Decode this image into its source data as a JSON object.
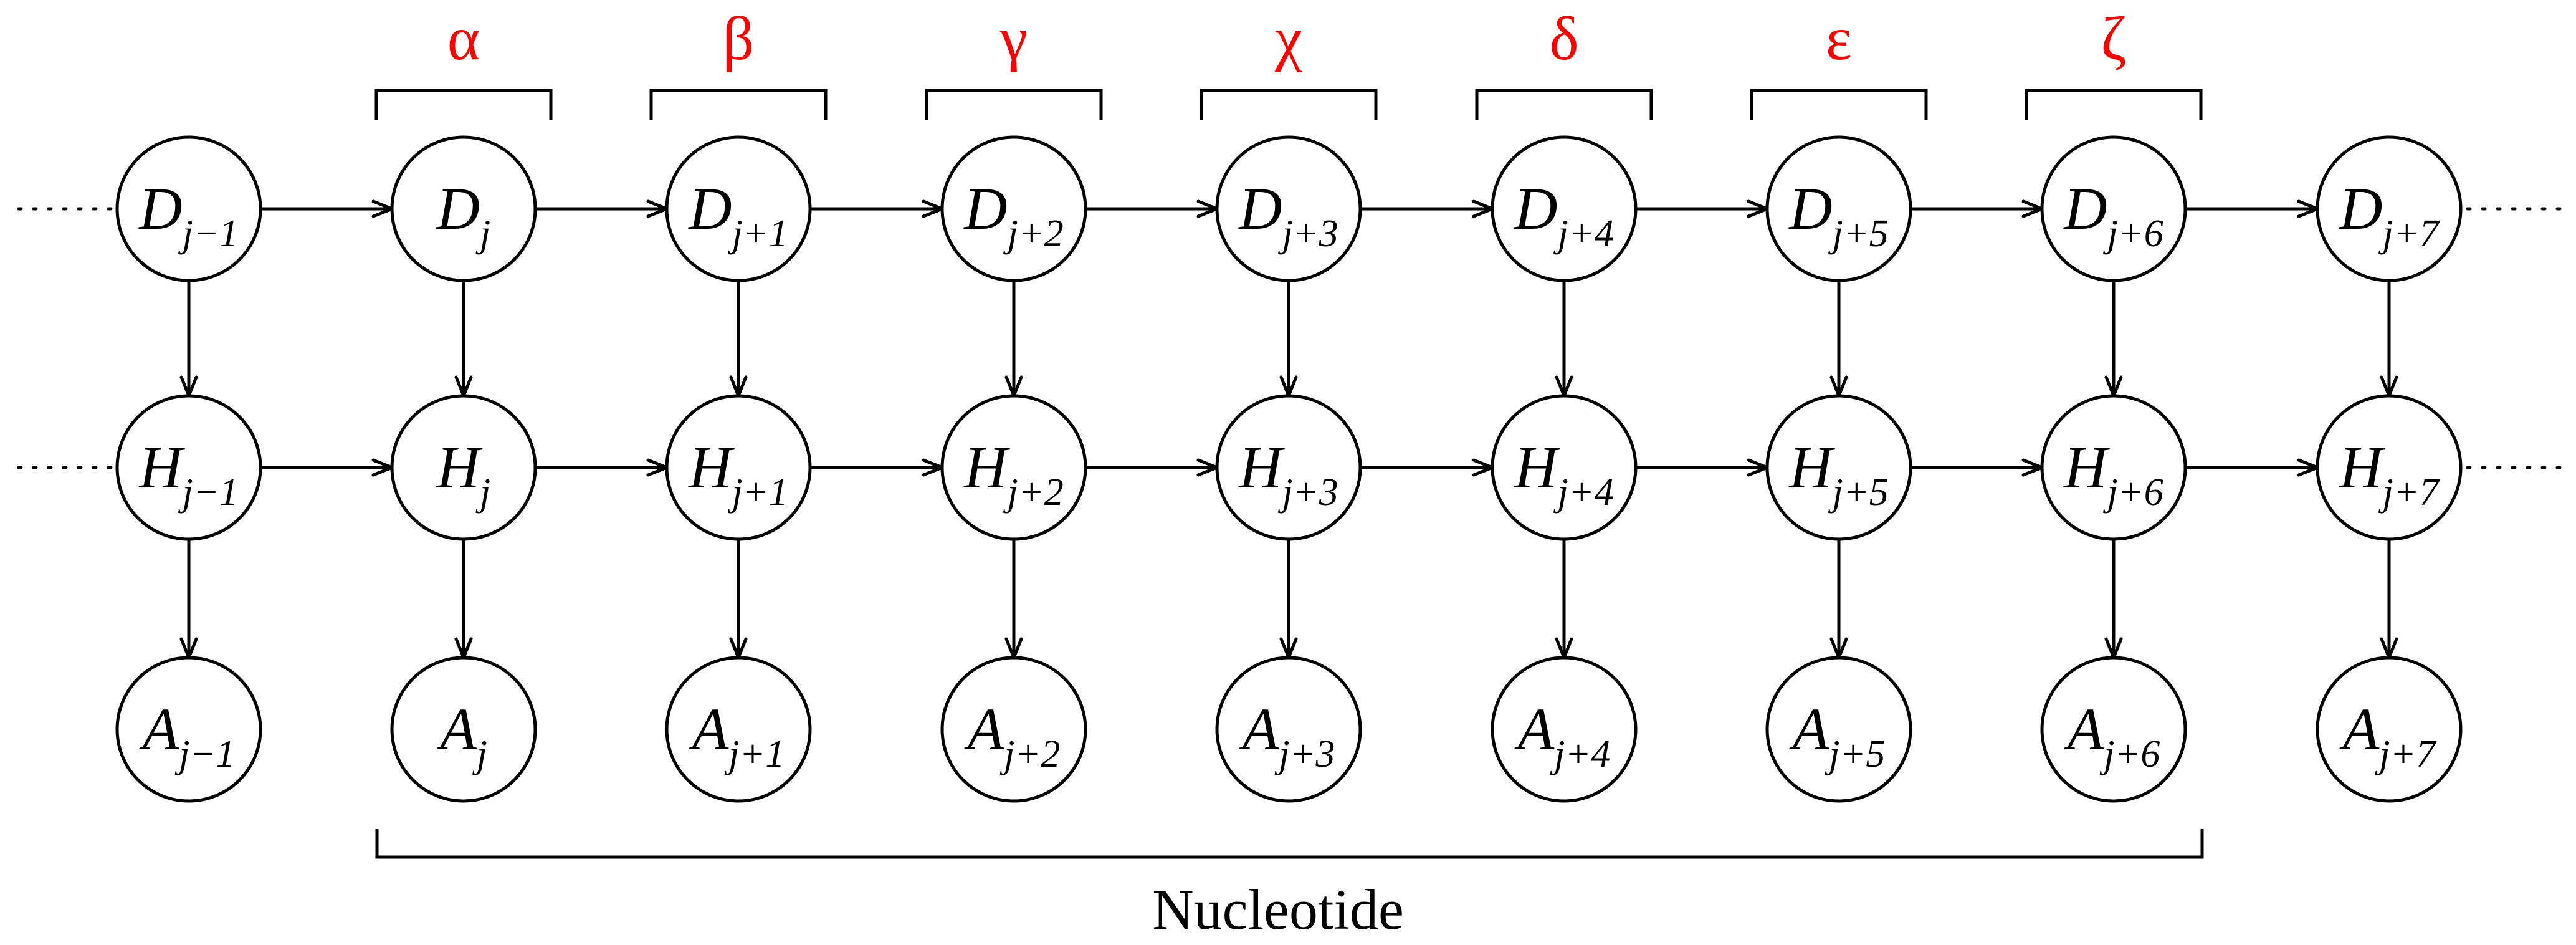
{
  "diagram": {
    "columns": [
      "j−1",
      "j",
      "j+1",
      "j+2",
      "j+3",
      "j+4",
      "j+5",
      "j+6",
      "j+7"
    ],
    "rows": [
      "D",
      "H",
      "A"
    ],
    "codon_labels": [
      "α",
      "β",
      "γ",
      "χ",
      "δ",
      "ε",
      "ζ"
    ],
    "nucleotide_label": "Nucleotide",
    "colors": {
      "greek_label": "#ff0000",
      "stroke": "#000000"
    }
  }
}
